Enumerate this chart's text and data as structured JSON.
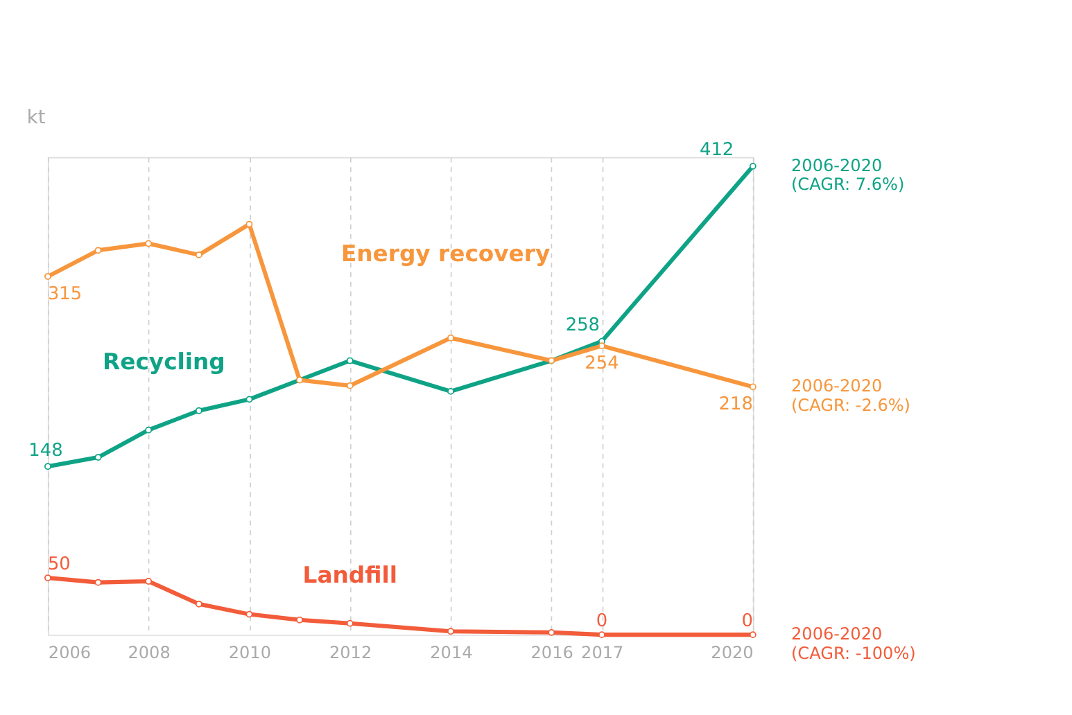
{
  "chart_data": {
    "type": "line",
    "ylabel": "kt",
    "x": [
      2006,
      2007,
      2008,
      2009,
      2010,
      2011,
      2012,
      2014,
      2016,
      2017,
      2020
    ],
    "xlim": [
      2006,
      2020
    ],
    "xticks": [
      2006,
      2008,
      2010,
      2012,
      2014,
      2016,
      2017,
      2020
    ],
    "ylim": [
      0,
      420
    ],
    "tick_labels": "x",
    "grid": "x",
    "legend": false,
    "marker": "circle",
    "line_style": "solid",
    "series": [
      {
        "name": "Recycling",
        "color": "#0fa386",
        "values": [
          148,
          156,
          180,
          197,
          207,
          224,
          241,
          214,
          241,
          258,
          412
        ],
        "value_labels": [
          "148",
          null,
          null,
          null,
          null,
          null,
          null,
          null,
          null,
          "258",
          "412"
        ]
      },
      {
        "name": "Energy recovery",
        "color": "#f7963c",
        "values": [
          315,
          338,
          344,
          334,
          361,
          224,
          219,
          261,
          241,
          254,
          218
        ],
        "value_labels": [
          "315",
          null,
          null,
          null,
          null,
          null,
          null,
          null,
          null,
          "254",
          "218"
        ]
      },
      {
        "name": "Landfill",
        "color": "#f25c3a",
        "values": [
          50,
          46,
          47,
          27,
          18,
          13,
          10,
          3,
          2,
          0,
          0
        ],
        "value_labels": [
          "50",
          null,
          null,
          null,
          null,
          null,
          null,
          null,
          null,
          "0",
          "0"
        ]
      }
    ],
    "annotations": [
      "2006-2020\n(CAGR: 7.6%)",
      "2006-2020\n(CAGR: -2.6%)",
      "2006-2020\n(CAGR: -100%)"
    ]
  }
}
